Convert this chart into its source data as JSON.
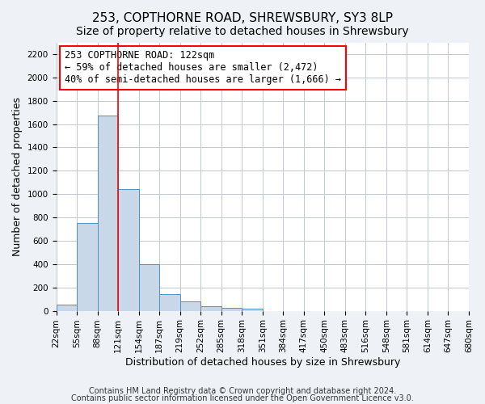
{
  "title": "253, COPTHORNE ROAD, SHREWSBURY, SY3 8LP",
  "subtitle": "Size of property relative to detached houses in Shrewsbury",
  "xlabel": "Distribution of detached houses by size in Shrewsbury",
  "ylabel": "Number of detached properties",
  "footer_line1": "Contains HM Land Registry data © Crown copyright and database right 2024.",
  "footer_line2": "Contains public sector information licensed under the Open Government Licence v3.0.",
  "bin_labels": [
    "22sqm",
    "55sqm",
    "88sqm",
    "121sqm",
    "154sqm",
    "187sqm",
    "219sqm",
    "252sqm",
    "285sqm",
    "318sqm",
    "351sqm",
    "384sqm",
    "417sqm",
    "450sqm",
    "483sqm",
    "516sqm",
    "548sqm",
    "581sqm",
    "614sqm",
    "647sqm",
    "680sqm"
  ],
  "bar_values": [
    50,
    750,
    1670,
    1040,
    400,
    145,
    80,
    40,
    25,
    20,
    0,
    0,
    0,
    0,
    0,
    0,
    0,
    0,
    0,
    0
  ],
  "bar_color": "#c8d8e8",
  "bar_edge_color": "#5090c0",
  "vline_x": 3,
  "vline_color": "red",
  "annotation_box_text": "253 COPTHORNE ROAD: 122sqm\n← 59% of detached houses are smaller (2,472)\n40% of semi-detached houses are larger (1,666) →",
  "ylim": [
    0,
    2300
  ],
  "yticks": [
    0,
    200,
    400,
    600,
    800,
    1000,
    1200,
    1400,
    1600,
    1800,
    2000,
    2200
  ],
  "background_color": "#eef2f6",
  "plot_background_color": "#ffffff",
  "grid_color": "#c0c8d0",
  "title_fontsize": 11,
  "subtitle_fontsize": 10,
  "axis_label_fontsize": 9,
  "tick_fontsize": 7.5,
  "annotation_fontsize": 8.5,
  "footer_fontsize": 7
}
